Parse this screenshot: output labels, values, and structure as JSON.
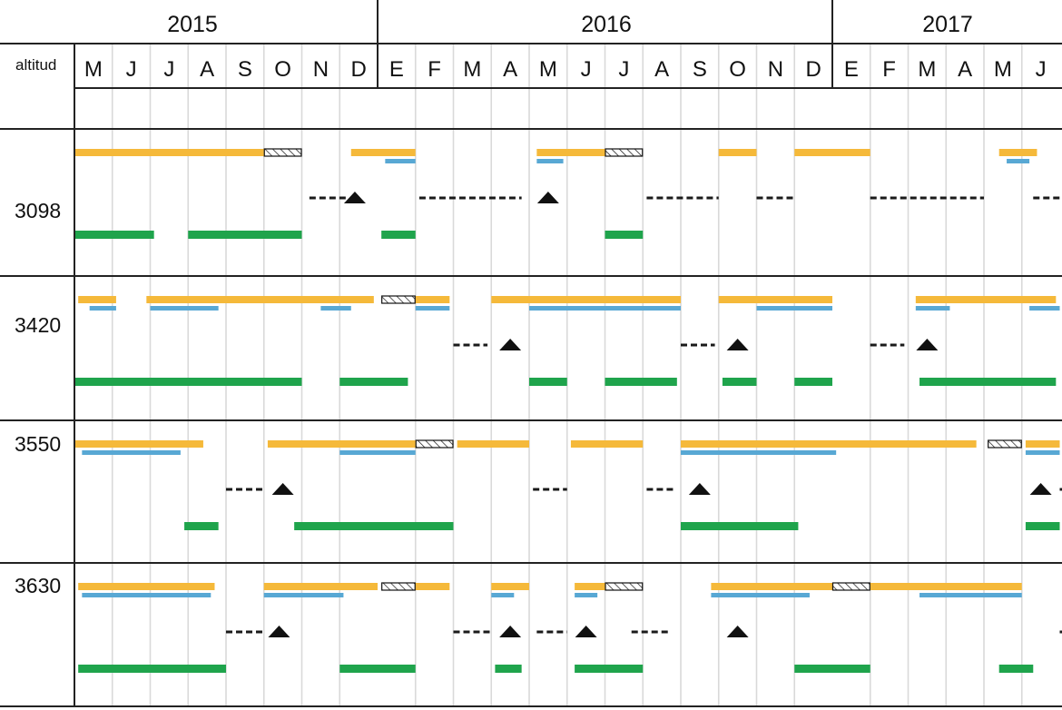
{
  "header": {
    "row_label": "altitud",
    "years": [
      "2015",
      "2016",
      "2017"
    ]
  },
  "months": [
    "M",
    "J",
    "J",
    "A",
    "S",
    "O",
    "N",
    "D",
    "E",
    "F",
    "M",
    "A",
    "M",
    "J",
    "J",
    "A",
    "S",
    "O",
    "N",
    "D",
    "E",
    "F",
    "M",
    "A",
    "M",
    "J"
  ],
  "colors": {
    "orange": "#f5b93a",
    "blue": "#58a8d4",
    "green": "#1fa44c",
    "dash": "#1a1a1a",
    "triangle": "#111111",
    "grid": "#d9d9d9",
    "border": "#222222"
  },
  "rows": [
    {
      "altitude": "3098",
      "orange": [
        [
          0,
          5.0
        ],
        [
          7.3,
          9.0
        ],
        [
          12.2,
          14.0
        ],
        [
          17.0,
          18.0
        ],
        [
          19.0,
          21.0
        ],
        [
          24.4,
          25.4
        ]
      ],
      "hatched": [
        [
          5.0,
          6.0
        ],
        [
          14.0,
          15.0
        ]
      ],
      "blue": [
        [
          8.2,
          9.0
        ],
        [
          12.2,
          12.9
        ],
        [
          24.6,
          25.2
        ]
      ],
      "dash": [
        [
          6.2,
          7.2
        ],
        [
          9.1,
          11.8
        ],
        [
          15.1,
          17.0
        ],
        [
          18.0,
          19.0
        ],
        [
          21.0,
          24.0
        ],
        [
          25.3,
          26.0
        ]
      ],
      "triangle": [
        7.4,
        12.5
      ],
      "green": [
        [
          0,
          2.1
        ],
        [
          3.0,
          6.0
        ],
        [
          8.1,
          9.0
        ],
        [
          14.0,
          15.0
        ]
      ]
    },
    {
      "altitude": "3420",
      "orange": [
        [
          0.1,
          1.1
        ],
        [
          1.9,
          7.9
        ],
        [
          9.0,
          9.9
        ],
        [
          11.0,
          16.0
        ],
        [
          17.0,
          20.0
        ],
        [
          22.2,
          25.9
        ]
      ],
      "hatched": [
        [
          8.1,
          9.0
        ]
      ],
      "blue": [
        [
          0.4,
          1.1
        ],
        [
          2.0,
          3.8
        ],
        [
          6.5,
          7.3
        ],
        [
          9.0,
          9.9
        ],
        [
          12.0,
          16.0
        ],
        [
          18.0,
          20.0
        ],
        [
          22.2,
          23.1
        ],
        [
          25.2,
          26.0
        ]
      ],
      "dash": [
        [
          10.0,
          10.9
        ],
        [
          16.0,
          16.9
        ],
        [
          21.0,
          21.9
        ]
      ],
      "triangle": [
        11.5,
        17.5,
        22.5
      ],
      "green": [
        [
          0,
          6.0
        ],
        [
          7.0,
          8.8
        ],
        [
          12.0,
          13.0
        ],
        [
          14.0,
          15.9
        ],
        [
          17.1,
          18.0
        ],
        [
          19.0,
          20.0
        ],
        [
          22.3,
          25.9
        ]
      ]
    },
    {
      "altitude": "3550",
      "orange": [
        [
          0,
          3.4
        ],
        [
          5.1,
          9.0
        ],
        [
          10.1,
          12.0
        ],
        [
          13.1,
          15.0
        ],
        [
          16.0,
          23.8
        ],
        [
          25.1,
          26.0
        ]
      ],
      "hatched": [
        [
          9.0,
          10.0
        ],
        [
          24.1,
          25.0
        ]
      ],
      "blue": [
        [
          0.2,
          2.8
        ],
        [
          7.0,
          9.0
        ],
        [
          16.0,
          20.1
        ],
        [
          25.1,
          26.0
        ]
      ],
      "dash": [
        [
          4.0,
          5.0
        ],
        [
          12.1,
          13.0
        ],
        [
          15.1,
          15.8
        ],
        [
          26.0,
          26.1
        ]
      ],
      "triangle": [
        5.5,
        16.5,
        25.5
      ],
      "green": [
        [
          2.9,
          3.8
        ],
        [
          5.8,
          10.0
        ],
        [
          16.0,
          19.1
        ],
        [
          25.1,
          26.0
        ]
      ]
    },
    {
      "altitude": "3630",
      "orange": [
        [
          0.1,
          3.7
        ],
        [
          5.0,
          8.0
        ],
        [
          9.0,
          9.9
        ],
        [
          11.0,
          12.0
        ],
        [
          13.2,
          14.0
        ],
        [
          16.8,
          20.0
        ],
        [
          21.0,
          25.0
        ]
      ],
      "hatched": [
        [
          8.1,
          9.0
        ],
        [
          14.0,
          15.0
        ],
        [
          20.0,
          21.0
        ]
      ],
      "blue": [
        [
          0.2,
          3.6
        ],
        [
          5.0,
          7.1
        ],
        [
          11.0,
          11.6
        ],
        [
          13.2,
          13.8
        ],
        [
          16.8,
          19.4
        ],
        [
          22.3,
          25.0
        ]
      ],
      "dash": [
        [
          4.0,
          5.0
        ],
        [
          10.0,
          11.0
        ],
        [
          12.2,
          13.0
        ],
        [
          14.7,
          15.7
        ],
        [
          26.0,
          26.1
        ]
      ],
      "triangle": [
        5.4,
        11.5,
        13.5,
        17.5
      ],
      "green": [
        [
          0.1,
          4.0
        ],
        [
          7.0,
          9.0
        ],
        [
          11.1,
          11.8
        ],
        [
          13.2,
          15.0
        ],
        [
          19.0,
          21.0
        ],
        [
          24.4,
          25.3
        ]
      ]
    }
  ]
}
